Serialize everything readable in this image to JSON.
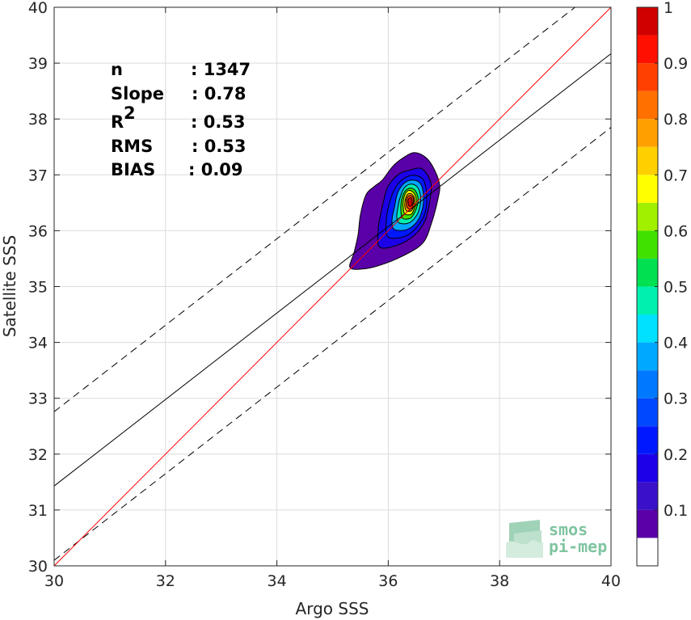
{
  "chart_data": {
    "type": "scatter",
    "subtype": "density-contour",
    "xlabel": "Argo SSS",
    "ylabel": "Satellite SSS",
    "xlim": [
      30,
      40
    ],
    "ylim": [
      30,
      40
    ],
    "xticks": [
      "30",
      "32",
      "34",
      "36",
      "38",
      "40"
    ],
    "yticks": [
      "30",
      "31",
      "32",
      "33",
      "34",
      "35",
      "36",
      "37",
      "38",
      "39",
      "40"
    ],
    "grid": true,
    "stats": [
      {
        "label": "n",
        "value": ": 1347"
      },
      {
        "label": "Slope",
        "value": ": 0.78"
      },
      {
        "label": "R",
        "sup": "2",
        "value": ": 0.53"
      },
      {
        "label": "RMS",
        "value": ": 0.53"
      },
      {
        "label": "BIAS",
        "value": ": 0.09"
      }
    ],
    "lines": {
      "identity": {
        "x": [
          30,
          40
        ],
        "y": [
          30,
          40
        ],
        "color": "#ff0000"
      },
      "regression": {
        "x": [
          30,
          40
        ],
        "y": [
          31.43,
          39.17
        ],
        "color": "#000000"
      },
      "bound_upper": {
        "x": [
          30,
          40
        ],
        "y": [
          32.76,
          40.5
        ],
        "color": "#000000",
        "dash": true
      },
      "bound_lower": {
        "x": [
          30,
          40
        ],
        "y": [
          30.1,
          37.85
        ],
        "color": "#000000",
        "dash": true
      }
    },
    "density_peak": {
      "x": 36.4,
      "y": 36.5
    },
    "colorbar": {
      "ticks": [
        "0.1",
        "0.2",
        "0.3",
        "0.4",
        "0.5",
        "0.6",
        "0.7",
        "0.8",
        "0.9",
        "1"
      ],
      "levels": [
        0,
        0.05,
        0.1,
        0.15,
        0.2,
        0.25,
        0.3,
        0.35,
        0.4,
        0.45,
        0.5,
        0.55,
        0.6,
        0.65,
        0.7,
        0.75,
        0.8,
        0.85,
        0.9,
        0.95,
        1.0
      ],
      "colors": [
        "#ffffff",
        "#5a00a8",
        "#3a10c8",
        "#1c00e8",
        "#0018ff",
        "#0048ff",
        "#0078ff",
        "#00a8ff",
        "#00e0ff",
        "#00f0b0",
        "#00e050",
        "#40e000",
        "#a0f000",
        "#ffff00",
        "#ffd000",
        "#ffa000",
        "#ff7000",
        "#ff4000",
        "#ff1000",
        "#d00000",
        "#8b0000"
      ]
    }
  },
  "logo": {
    "line1": "smos",
    "line2": "pi-mep"
  }
}
